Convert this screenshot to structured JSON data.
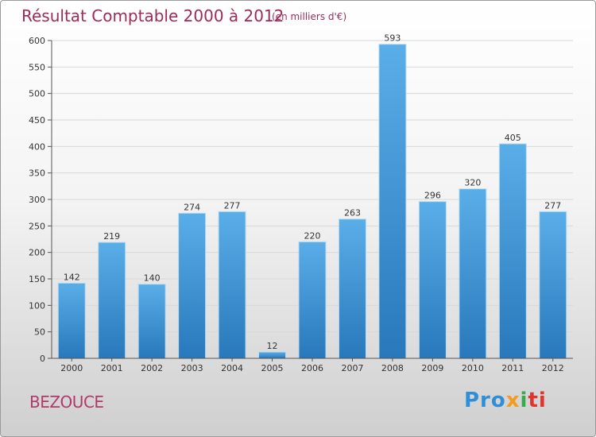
{
  "chart_data": {
    "type": "bar",
    "title": "Résultat Comptable 2000 à 2012",
    "subtitle": "(en milliers d'€)",
    "categories": [
      "2000",
      "2001",
      "2002",
      "2003",
      "2004",
      "2005",
      "2006",
      "2007",
      "2008",
      "2009",
      "2010",
      "2011",
      "2012"
    ],
    "values": [
      142,
      219,
      140,
      274,
      277,
      12,
      220,
      263,
      593,
      296,
      320,
      405,
      277
    ],
    "ylim": [
      0,
      600
    ],
    "yticks": [
      0,
      50,
      100,
      150,
      200,
      250,
      300,
      350,
      400,
      450,
      500,
      550,
      600
    ],
    "grid": true,
    "bar_color_top": "#5aaee8",
    "bar_color_bottom": "#2878bb"
  },
  "place_name": "BEZOUCE",
  "logo": {
    "text": "Proxiti",
    "parts": [
      "Pro",
      "x",
      "i",
      "ti"
    ]
  }
}
